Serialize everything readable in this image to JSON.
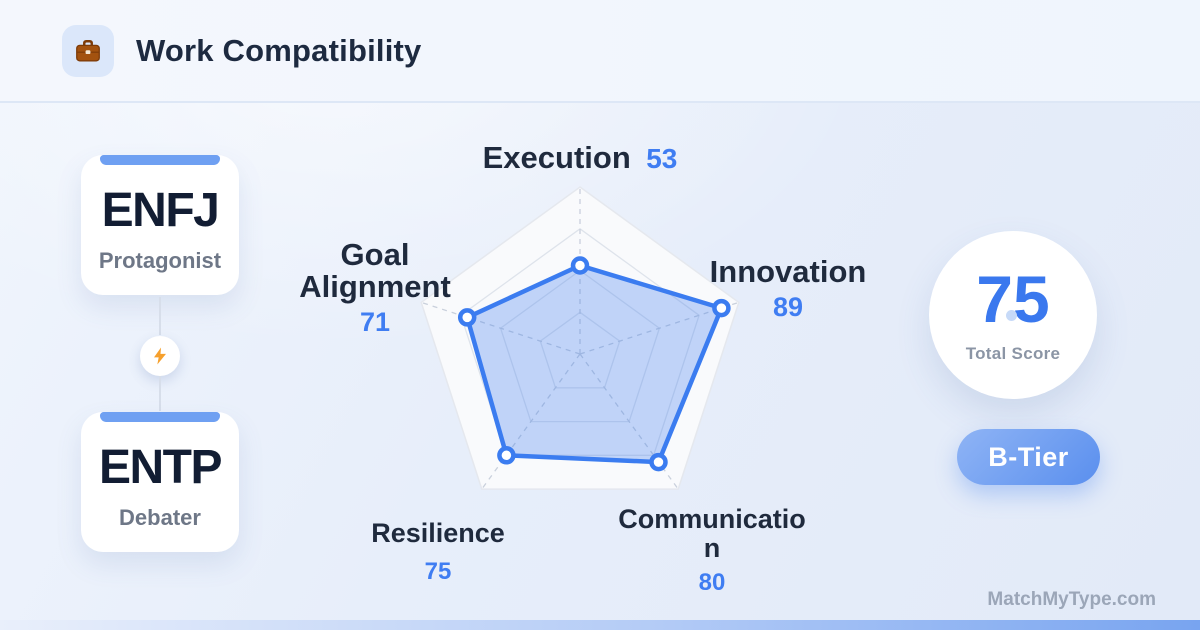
{
  "header": {
    "title": "Work Compatibility",
    "icon": "briefcase"
  },
  "pair": {
    "left": {
      "code": "ENFJ",
      "name": "Protagonist"
    },
    "right": {
      "code": "ENTP",
      "name": "Debater"
    },
    "connector_icon": "lightning"
  },
  "chart_data": {
    "type": "radar",
    "categories": [
      "Execution",
      "Innovation",
      "Communication",
      "Resilience",
      "Goal Alignment"
    ],
    "values": [
      53,
      89,
      80,
      75,
      71
    ],
    "max": 100,
    "grid_levels": [
      25,
      50,
      75,
      100
    ],
    "grid_shape": "pentagon",
    "legend": "none",
    "stroke_color": "#3b7cf0",
    "fill_color": "rgba(61,124,238,0.30)",
    "label_color": "#1f2a3d",
    "value_color": "#3f7df2"
  },
  "score": {
    "value": "75",
    "label": "Total Score",
    "tier": "B-Tier",
    "accent_color": "#3a78ee"
  },
  "watermark": "MatchMyType.com"
}
